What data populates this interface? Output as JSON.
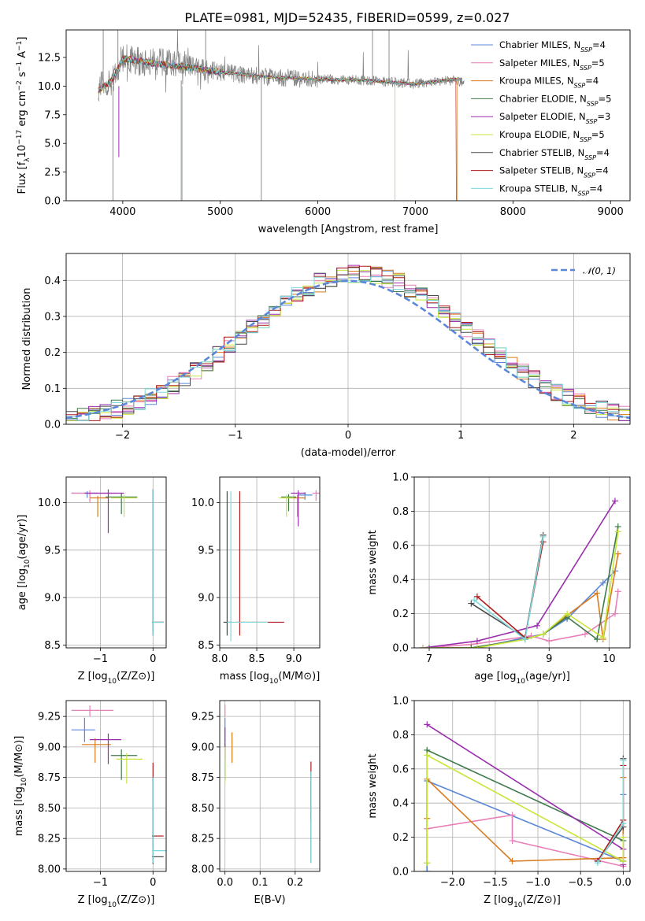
{
  "figure": {
    "title": "PLATE=0981, MJD=52435, FIBERID=0599, z=0.027"
  },
  "colors": {
    "Chabrier MILES": "#5b87d9",
    "Salpeter MILES": "#e87fb8",
    "Kroupa MILES": "#d97a1e",
    "Chabrier ELODIE": "#3e7a4a",
    "Salpeter ELODIE": "#9a2cae",
    "Kroupa ELODIE": "#c8e63a",
    "Chabrier STELIB": "#4a4a4a",
    "Salpeter STELIB": "#b01c1c",
    "Kroupa STELIB": "#7dd8dc",
    "gaussian": "#5b87d9"
  },
  "chart_data": [
    {
      "id": "spectrum",
      "type": "line",
      "title": "PLATE=0981, MJD=52435, FIBERID=0599, z=0.027",
      "xlabel": "wavelength [Angstrom, rest frame]",
      "ylabel": "Flux [f_λ 10^-17 erg cm^-2 s^-1 A^-1]",
      "xlim": [
        3420,
        9200
      ],
      "ylim": [
        0,
        14.9
      ],
      "xticks": [
        "4000",
        "5000",
        "6000",
        "7000",
        "8000",
        "9000"
      ],
      "yticks": [
        "0.0",
        "2.5",
        "5.0",
        "7.5",
        "10.0",
        "12.5"
      ],
      "legend_position": "upper right",
      "legend": [
        {
          "name": "Chabrier MILES",
          "nssp": "4"
        },
        {
          "name": "Salpeter MILES",
          "nssp": "5"
        },
        {
          "name": "Kroupa MILES",
          "nssp": "4"
        },
        {
          "name": "Chabrier ELODIE",
          "nssp": "5"
        },
        {
          "name": "Salpeter ELODIE",
          "nssp": "3"
        },
        {
          "name": "Kroupa ELODIE",
          "nssp": "5"
        },
        {
          "name": "Chabrier STELIB",
          "nssp": "4"
        },
        {
          "name": "Salpeter STELIB",
          "nssp": "4"
        },
        {
          "name": "Kroupa STELIB",
          "nssp": "4"
        }
      ],
      "data_series": {
        "name": "data",
        "color": "#808080",
        "x": [
          3750,
          3900,
          4000,
          4100,
          4200,
          4300,
          4500,
          4700,
          5000,
          5500,
          6000,
          6500,
          6800,
          7000,
          7200,
          7400,
          7500
        ],
        "y": [
          10.0,
          10.5,
          12.5,
          12.3,
          12.0,
          12.1,
          12.0,
          11.8,
          11.2,
          10.8,
          10.6,
          10.5,
          10.3,
          10.2,
          10.4,
          10.5,
          10.3
        ]
      },
      "model_continuum": {
        "x": [
          3750,
          3900,
          4000,
          4100,
          4200,
          4300,
          4500,
          4700,
          5000,
          5500,
          6000,
          6500,
          6800,
          7000,
          7200,
          7400
        ],
        "y": [
          9.6,
          10.6,
          12.4,
          12.3,
          12.2,
          12.0,
          11.8,
          11.6,
          11.2,
          10.8,
          10.6,
          10.5,
          10.3,
          10.2,
          10.4,
          10.6
        ]
      }
    },
    {
      "id": "residuals",
      "type": "step",
      "xlabel": "(data-model)/error",
      "ylabel": "Normed distribution",
      "xlim": [
        -2.5,
        2.5
      ],
      "ylim": [
        0,
        0.475
      ],
      "xticks": [
        "−2",
        "−1",
        "0",
        "1",
        "2"
      ],
      "yticks": [
        "0.0",
        "0.1",
        "0.2",
        "0.3",
        "0.4"
      ],
      "grid": true,
      "legend_position": "upper right",
      "legend": [
        {
          "name": "𝒩(0, 1)"
        }
      ],
      "bin_width": 0.1
    },
    {
      "id": "Z_vs_age",
      "type": "errorbar",
      "xlabel": "Z [log10(Z/Z⊙)]",
      "ylabel": "age  [log10(age/yr)]",
      "xlim": [
        -1.65,
        0.25
      ],
      "ylim": [
        8.47,
        10.27
      ],
      "xticks": [
        "−1",
        "0"
      ],
      "yticks": [
        "8.5",
        "9.0",
        "9.5",
        "10.0"
      ],
      "grid": true,
      "points": [
        {
          "model": "Chabrier MILES",
          "x": -1.25,
          "y": 10.1,
          "xerr": [
            0.3,
            0.2
          ],
          "yerr": [
            0.05,
            0.02
          ]
        },
        {
          "model": "Salpeter MILES",
          "x": -1.2,
          "y": 10.1,
          "xerr": [
            0.35,
            0.5
          ],
          "yerr": [
            0.1,
            0.03
          ]
        },
        {
          "model": "Kroupa MILES",
          "x": -1.05,
          "y": 10.05,
          "xerr": [
            0.15,
            0.2
          ],
          "yerr": [
            0.2,
            0.02
          ]
        },
        {
          "model": "Chabrier ELODIE",
          "x": -0.6,
          "y": 10.06,
          "xerr": [
            0.3,
            0.3
          ],
          "yerr": [
            0.18,
            0.04
          ]
        },
        {
          "model": "Salpeter ELODIE",
          "x": -0.85,
          "y": 10.1,
          "xerr": [
            0.45,
            0.3
          ],
          "yerr": [
            0.42,
            0.04
          ]
        },
        {
          "model": "Kroupa ELODIE",
          "x": -0.55,
          "y": 10.05,
          "xerr": [
            0.25,
            0.25
          ],
          "yerr": [
            0.2,
            0.03
          ]
        },
        {
          "model": "Chabrier STELIB",
          "x": 0.0,
          "y": 8.74,
          "xerr": [
            0.02,
            0.2
          ],
          "yerr": [
            0.1,
            1.4
          ]
        },
        {
          "model": "Salpeter STELIB",
          "x": 0.0,
          "y": 8.74,
          "xerr": [
            0.02,
            0.2
          ],
          "yerr": [
            0.14,
            1.4
          ]
        },
        {
          "model": "Kroupa STELIB",
          "x": 0.0,
          "y": 8.74,
          "xerr": [
            0.02,
            0.2
          ],
          "yerr": [
            0.14,
            1.4
          ]
        }
      ]
    },
    {
      "id": "mass_vs_age",
      "type": "errorbar",
      "xlabel": "mass [log10(M/M⊙)]",
      "ylabel": "",
      "xlim": [
        8.0,
        9.35
      ],
      "ylim": [
        8.47,
        10.27
      ],
      "xticks": [
        "8.0",
        "8.5",
        "9.0"
      ],
      "yticks": [
        "8.5",
        "9.0",
        "9.5",
        "10.0"
      ],
      "grid": true,
      "points": [
        {
          "model": "Chabrier MILES",
          "x": 9.15,
          "y": 10.08,
          "xerr": [
            0.1,
            0.1
          ],
          "yerr": [
            0.05,
            0.03
          ]
        },
        {
          "model": "Salpeter MILES",
          "x": 9.3,
          "y": 10.1,
          "xerr": [
            0.05,
            0.05
          ],
          "yerr": [
            0.08,
            0.03
          ]
        },
        {
          "model": "Kroupa MILES",
          "x": 9.05,
          "y": 10.05,
          "xerr": [
            0.15,
            0.1
          ],
          "yerr": [
            0.2,
            0.03
          ]
        },
        {
          "model": "Chabrier ELODIE",
          "x": 8.93,
          "y": 10.06,
          "xerr": [
            0.1,
            0.1
          ],
          "yerr": [
            0.15,
            0.03
          ]
        },
        {
          "model": "Salpeter ELODIE",
          "x": 9.06,
          "y": 10.1,
          "xerr": [
            0.1,
            0.1
          ],
          "yerr": [
            0.35,
            0.03
          ]
        },
        {
          "model": "Kroupa ELODIE",
          "x": 8.9,
          "y": 10.05,
          "xerr": [
            0.1,
            0.1
          ],
          "yerr": [
            0.2,
            0.03
          ]
        },
        {
          "model": "Chabrier STELIB",
          "x": 8.1,
          "y": 8.74,
          "xerr": [
            0.05,
            0.05
          ],
          "yerr": [
            0.14,
            1.38
          ]
        },
        {
          "model": "Salpeter STELIB",
          "x": 8.27,
          "y": 8.74,
          "xerr": [
            0.05,
            0.6
          ],
          "yerr": [
            0.14,
            1.38
          ]
        },
        {
          "model": "Kroupa STELIB",
          "x": 8.15,
          "y": 8.74,
          "xerr": [
            0.05,
            0.5
          ],
          "yerr": [
            0.2,
            1.38
          ]
        }
      ]
    },
    {
      "id": "age_vs_weight",
      "type": "line",
      "xlabel": "age  [log10(age/yr)]",
      "ylabel": "mass weight",
      "xlim": [
        6.75,
        10.35
      ],
      "ylim": [
        0,
        1.0
      ],
      "xticks": [
        "7",
        "8",
        "9",
        "10"
      ],
      "yticks": [
        "0.0",
        "0.2",
        "0.4",
        "0.6",
        "0.8",
        "1.0"
      ],
      "grid": true,
      "series": [
        {
          "model": "Chabrier MILES",
          "x": [
            6.9,
            7.8,
            8.6,
            8.9,
            9.3,
            9.9,
            10.1
          ],
          "y": [
            0.0,
            0.0,
            0.06,
            0.08,
            0.17,
            0.38,
            0.45
          ]
        },
        {
          "model": "Salpeter MILES",
          "x": [
            6.9,
            7.7,
            8.7,
            9.0,
            9.6,
            10.1,
            10.15
          ],
          "y": [
            0.0,
            0.02,
            0.07,
            0.04,
            0.08,
            0.2,
            0.33
          ]
        },
        {
          "model": "Kroupa MILES",
          "x": [
            6.9,
            7.7,
            8.6,
            8.9,
            9.3,
            9.8,
            9.9,
            10.15
          ],
          "y": [
            0.0,
            0.0,
            0.05,
            0.08,
            0.19,
            0.32,
            0.05,
            0.55
          ]
        },
        {
          "model": "Chabrier ELODIE",
          "x": [
            7.0,
            7.7,
            8.6,
            8.9,
            9.3,
            9.8,
            10.15
          ],
          "y": [
            0.0,
            0.0,
            0.05,
            0.08,
            0.18,
            0.05,
            0.71
          ]
        },
        {
          "model": "Salpeter ELODIE",
          "x": [
            6.9,
            7.8,
            8.8,
            10.1
          ],
          "y": [
            0.0,
            0.04,
            0.13,
            0.86
          ]
        },
        {
          "model": "Kroupa ELODIE",
          "x": [
            6.9,
            7.8,
            8.6,
            8.9,
            9.3,
            9.9,
            10.15
          ],
          "y": [
            0.0,
            0.0,
            0.05,
            0.08,
            0.2,
            0.06,
            0.68
          ]
        },
        {
          "model": "Chabrier STELIB",
          "x": [
            7.7,
            8.6,
            8.9
          ],
          "y": [
            0.26,
            0.06,
            0.66
          ]
        },
        {
          "model": "Salpeter STELIB",
          "x": [
            7.8,
            8.6,
            8.9
          ],
          "y": [
            0.3,
            0.06,
            0.62
          ]
        },
        {
          "model": "Kroupa STELIB",
          "x": [
            7.75,
            8.6,
            8.9
          ],
          "y": [
            0.28,
            0.05,
            0.65
          ]
        }
      ]
    },
    {
      "id": "Z_vs_mass",
      "type": "errorbar",
      "xlabel": "Z [log10(Z/Z⊙)]",
      "ylabel": "mass [log10(M/M⊙)]",
      "xlim": [
        -1.65,
        0.25
      ],
      "ylim": [
        7.98,
        9.38
      ],
      "xticks": [
        "−1",
        "0"
      ],
      "yticks": [
        "8.00",
        "8.25",
        "8.50",
        "8.75",
        "9.00",
        "9.25"
      ],
      "grid": true,
      "points": [
        {
          "model": "Chabrier MILES",
          "x": -1.3,
          "y": 9.14,
          "xerr": [
            0.25,
            0.2
          ],
          "yerr": [
            0.1,
            0.1
          ]
        },
        {
          "model": "Salpeter MILES",
          "x": -1.2,
          "y": 9.3,
          "xerr": [
            0.35,
            0.45
          ],
          "yerr": [
            0.05,
            0.04
          ]
        },
        {
          "model": "Kroupa MILES",
          "x": -1.1,
          "y": 9.02,
          "xerr": [
            0.25,
            0.3
          ],
          "yerr": [
            0.15,
            0.05
          ]
        },
        {
          "model": "Chabrier ELODIE",
          "x": -0.6,
          "y": 8.93,
          "xerr": [
            0.2,
            0.3
          ],
          "yerr": [
            0.2,
            0.05
          ]
        },
        {
          "model": "Salpeter ELODIE",
          "x": -0.85,
          "y": 9.06,
          "xerr": [
            0.35,
            0.25
          ],
          "yerr": [
            0.2,
            0.05
          ]
        },
        {
          "model": "Kroupa ELODIE",
          "x": -0.5,
          "y": 8.9,
          "xerr": [
            0.2,
            0.3
          ],
          "yerr": [
            0.2,
            0.05
          ]
        },
        {
          "model": "Chabrier STELIB",
          "x": 0.0,
          "y": 8.1,
          "xerr": [
            0.02,
            0.2
          ],
          "yerr": [
            0.06,
            0.65
          ]
        },
        {
          "model": "Salpeter STELIB",
          "x": 0.0,
          "y": 8.27,
          "xerr": [
            0.02,
            0.2
          ],
          "yerr": [
            0.1,
            0.6
          ]
        },
        {
          "model": "Kroupa STELIB",
          "x": 0.0,
          "y": 8.15,
          "xerr": [
            0.02,
            0.25
          ],
          "yerr": [
            0.1,
            0.6
          ]
        }
      ]
    },
    {
      "id": "EBV_vs_mass",
      "type": "errorbar",
      "xlabel": "E(B-V)",
      "ylabel": "",
      "xlim": [
        -0.015,
        0.27
      ],
      "ylim": [
        7.98,
        9.38
      ],
      "xticks": [
        "0.0",
        "0.1",
        "0.2"
      ],
      "yticks": [
        "8.00",
        "8.25",
        "8.50",
        "8.75",
        "9.00",
        "9.25"
      ],
      "grid": true,
      "points": [
        {
          "model": "Chabrier MILES",
          "x": 0.0,
          "y": 9.14,
          "xerr": [
            0.0,
            0.0
          ],
          "yerr": [
            0.1,
            0.1
          ]
        },
        {
          "model": "Salpeter MILES",
          "x": 0.0,
          "y": 9.3,
          "xerr": [
            0.0,
            0.0
          ],
          "yerr": [
            0.05,
            0.05
          ]
        },
        {
          "model": "Kroupa MILES",
          "x": 0.02,
          "y": 9.02,
          "xerr": [
            0.0,
            0.0
          ],
          "yerr": [
            0.15,
            0.1
          ]
        },
        {
          "model": "Chabrier ELODIE",
          "x": 0.0,
          "y": 8.93,
          "xerr": [
            0.0,
            0.0
          ],
          "yerr": [
            0.2,
            0.1
          ]
        },
        {
          "model": "Salpeter ELODIE",
          "x": 0.0,
          "y": 9.06,
          "xerr": [
            0.0,
            0.0
          ],
          "yerr": [
            0.15,
            0.1
          ]
        },
        {
          "model": "Kroupa ELODIE",
          "x": 0.0,
          "y": 8.9,
          "xerr": [
            0.0,
            0.0
          ],
          "yerr": [
            0.2,
            0.1
          ]
        },
        {
          "model": "Chabrier STELIB",
          "x": 0.245,
          "y": 8.4,
          "xerr": [
            0.0,
            0.0
          ],
          "yerr": [
            0.35,
            0.4
          ]
        },
        {
          "model": "Salpeter STELIB",
          "x": 0.245,
          "y": 8.6,
          "xerr": [
            0.0,
            0.0
          ],
          "yerr": [
            0.2,
            0.28
          ]
        },
        {
          "model": "Kroupa STELIB",
          "x": 0.245,
          "y": 8.4,
          "xerr": [
            0.0,
            0.0
          ],
          "yerr": [
            0.35,
            0.4
          ]
        }
      ]
    },
    {
      "id": "Z_vs_weight",
      "type": "line",
      "xlabel": "Z [log10(Z/Z⊙)]",
      "ylabel": "mass weight",
      "xlim": [
        -2.45,
        0.08
      ],
      "ylim": [
        0,
        1.0
      ],
      "xticks": [
        "−2.0",
        "−1.5",
        "−1.0",
        "−0.5",
        "0.0"
      ],
      "yticks": [
        "0.0",
        "0.2",
        "0.4",
        "0.6",
        "0.8",
        "1.0"
      ],
      "grid": true,
      "series": [
        {
          "model": "Chabrier MILES",
          "x": [
            -2.3,
            -2.3,
            0.0,
            0.0
          ],
          "y": [
            0.0,
            0.53,
            0.06,
            0.45
          ]
        },
        {
          "model": "Salpeter MILES",
          "x": [
            -2.3,
            -1.3,
            -1.3,
            0.0
          ],
          "y": [
            0.25,
            0.33,
            0.18,
            0.03
          ]
        },
        {
          "model": "Kroupa MILES",
          "x": [
            -2.3,
            -2.3,
            -1.3,
            0.0,
            0.0
          ],
          "y": [
            0.31,
            0.54,
            0.06,
            0.08,
            0.55
          ]
        },
        {
          "model": "Chabrier ELODIE",
          "x": [
            -2.3,
            -2.3,
            0.0,
            0.0
          ],
          "y": [
            0.05,
            0.71,
            0.18,
            0.06
          ]
        },
        {
          "model": "Salpeter ELODIE",
          "x": [
            -2.3,
            0.0,
            0.0
          ],
          "y": [
            0.86,
            0.13,
            0.04
          ]
        },
        {
          "model": "Kroupa ELODIE",
          "x": [
            -2.3,
            -2.3,
            0.0,
            0.0
          ],
          "y": [
            0.05,
            0.68,
            0.06,
            0.2
          ]
        },
        {
          "model": "Chabrier STELIB",
          "x": [
            -0.3,
            0.0,
            0.0
          ],
          "y": [
            0.06,
            0.26,
            0.66
          ]
        },
        {
          "model": "Salpeter STELIB",
          "x": [
            -0.3,
            0.0,
            0.0
          ],
          "y": [
            0.06,
            0.3,
            0.62
          ]
        },
        {
          "model": "Kroupa STELIB",
          "x": [
            -0.3,
            0.0,
            0.0
          ],
          "y": [
            0.05,
            0.28,
            0.65
          ]
        }
      ]
    }
  ]
}
